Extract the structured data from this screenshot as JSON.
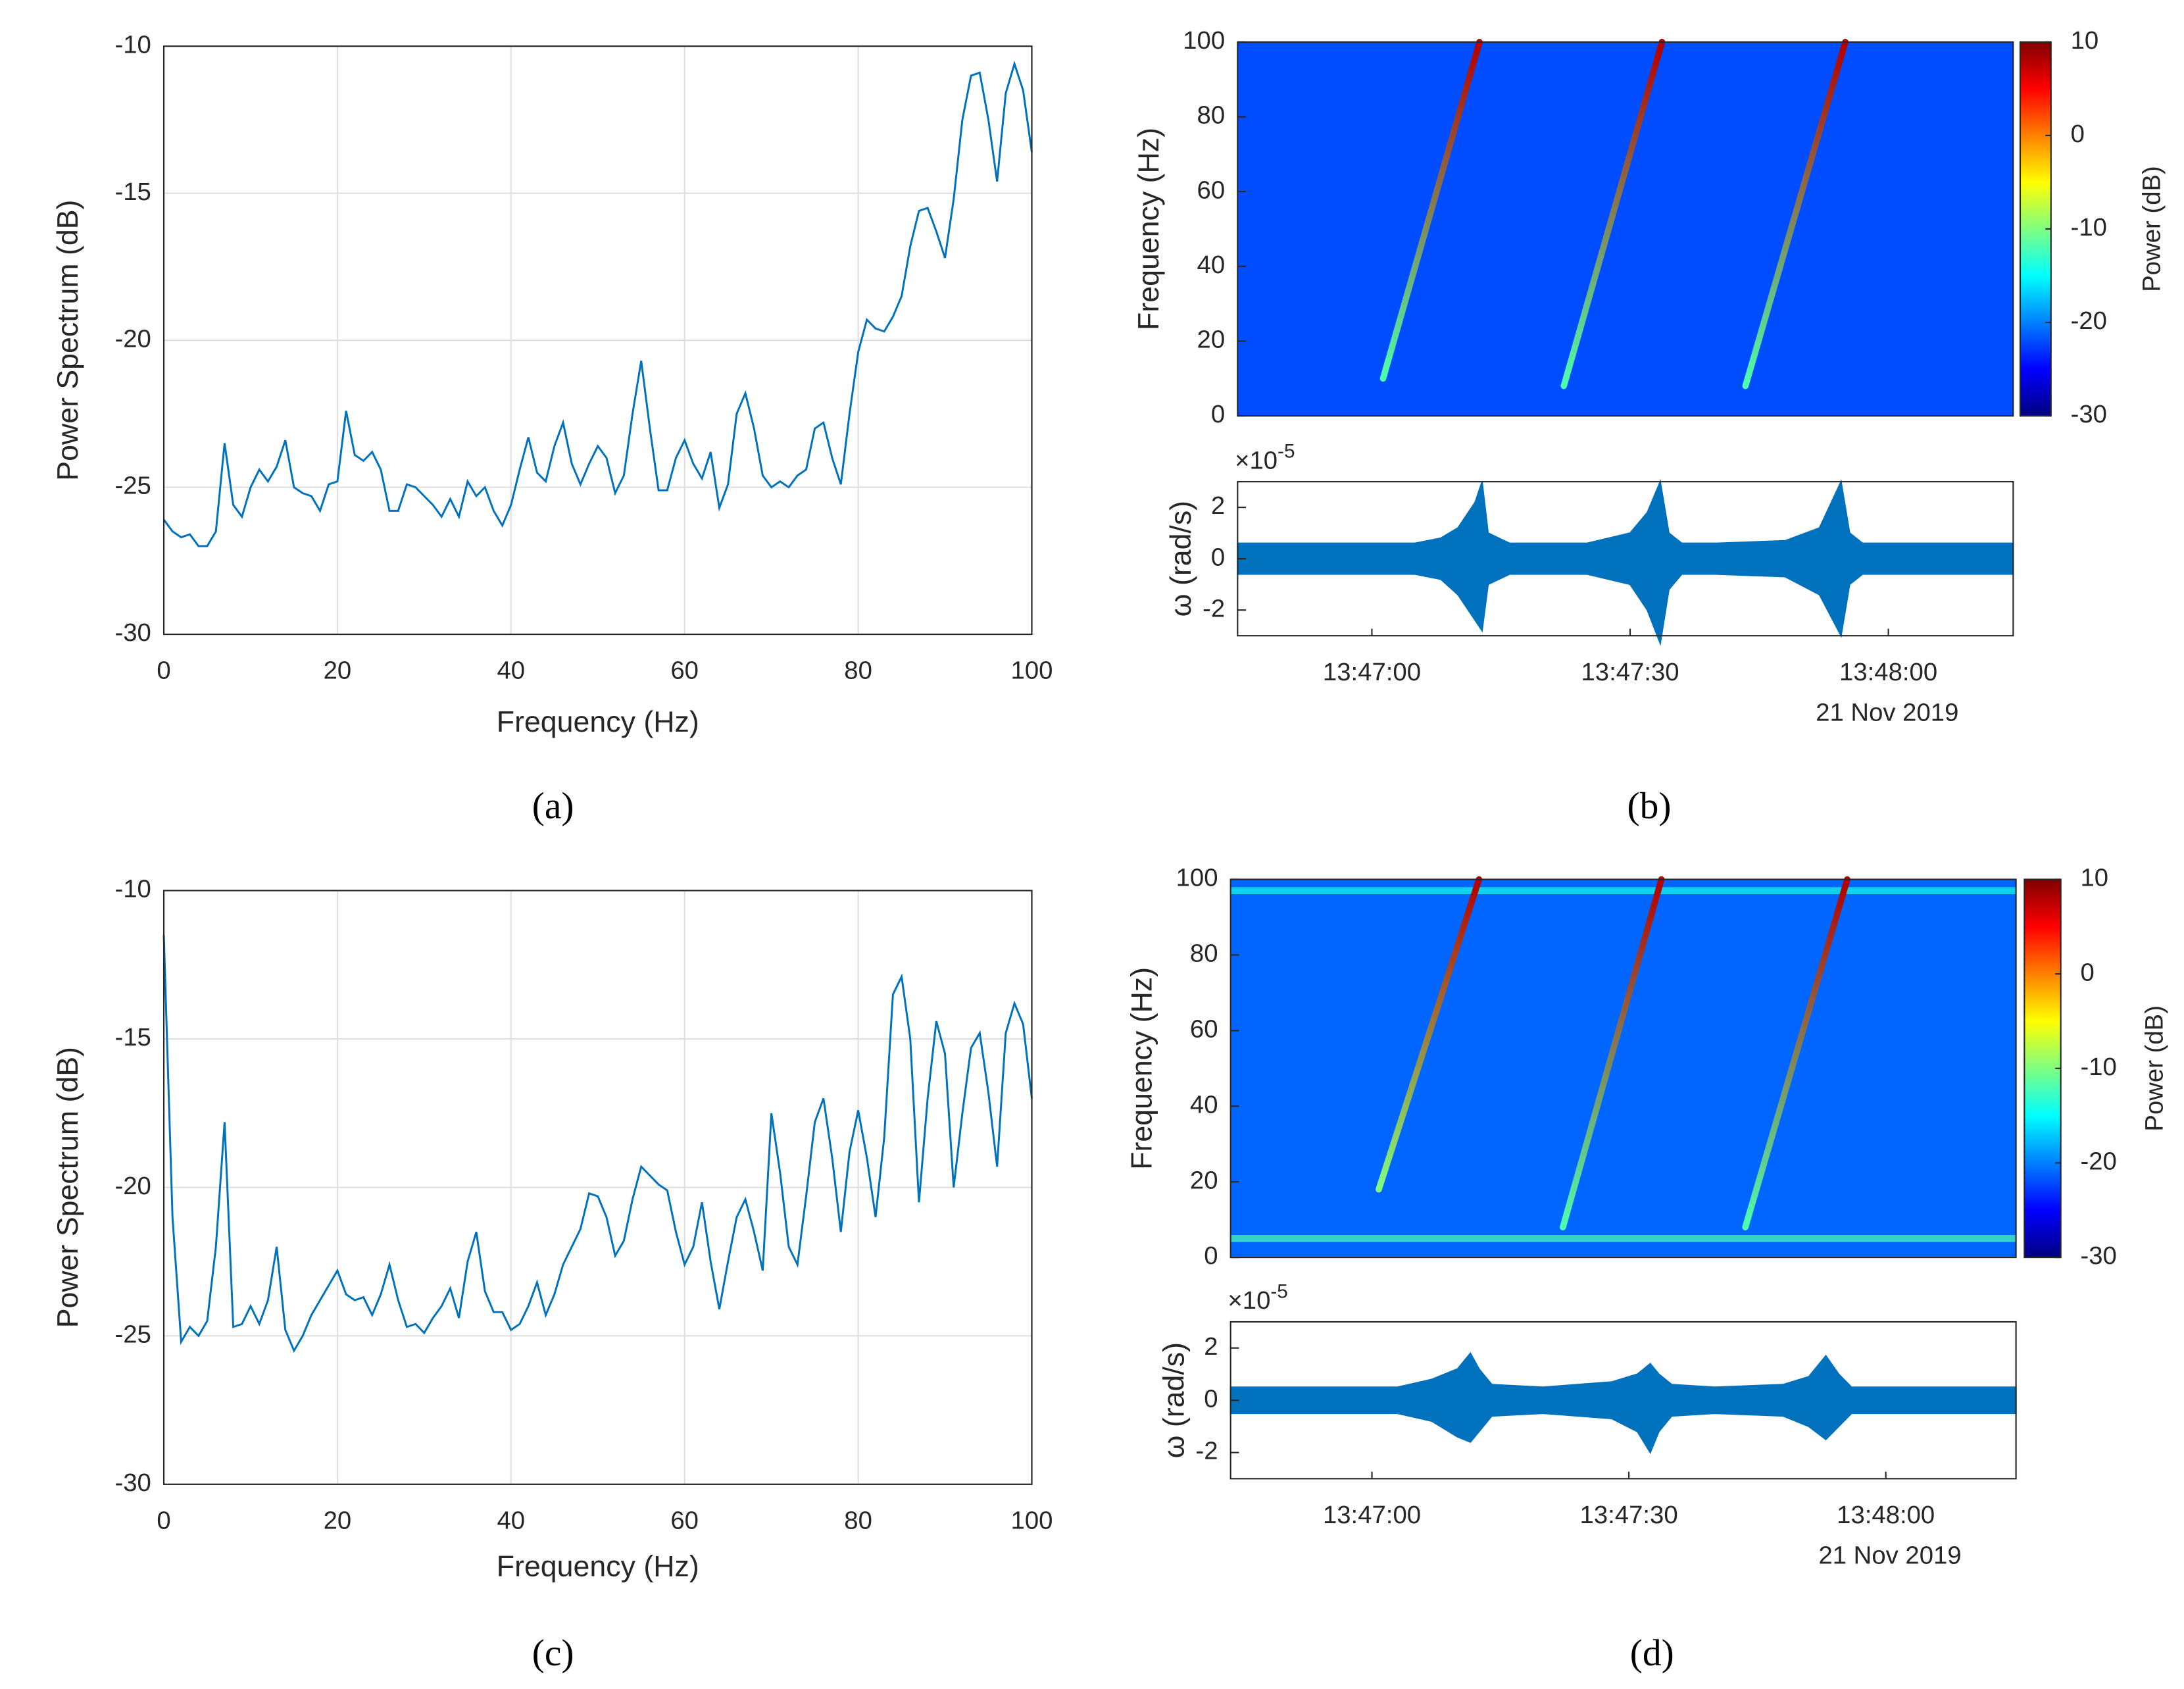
{
  "chart_data": [
    {
      "type": "line",
      "xlabel": "Frequency (Hz)",
      "ylabel": "Power Spectrum (dB)",
      "caption": "(a)",
      "color": "#0072bd",
      "grid": true,
      "xlim": [
        0,
        100
      ],
      "ylim": [
        -30,
        -10
      ],
      "xticks": [
        0,
        20,
        40,
        60,
        80,
        100
      ],
      "yticks": [
        -30,
        -25,
        -20,
        -15,
        -10
      ],
      "x": [
        0,
        1,
        2,
        3,
        4,
        5,
        6,
        7,
        8,
        9,
        10,
        11,
        12,
        13,
        14,
        15,
        16,
        17,
        18,
        19,
        20,
        21,
        22,
        23,
        24,
        25,
        26,
        27,
        28,
        29,
        30,
        31,
        32,
        33,
        34,
        35,
        36,
        37,
        38,
        39,
        40,
        41,
        42,
        43,
        44,
        45,
        46,
        47,
        48,
        49,
        50,
        51,
        52,
        53,
        54,
        55,
        56,
        57,
        58,
        59,
        60,
        61,
        62,
        63,
        64,
        65,
        66,
        67,
        68,
        69,
        70,
        71,
        72,
        73,
        74,
        75,
        76,
        77,
        78,
        79,
        80,
        81,
        82,
        83,
        84,
        85,
        86,
        87,
        88,
        89,
        90,
        91,
        92,
        93,
        94,
        95,
        96,
        97,
        98,
        99,
        100
      ],
      "values": [
        -26.1,
        -26.5,
        -26.7,
        -26.6,
        -27.0,
        -27.0,
        -26.5,
        -23.5,
        -25.6,
        -26.0,
        -25.0,
        -24.4,
        -24.8,
        -24.3,
        -23.4,
        -25.0,
        -25.2,
        -25.3,
        -25.8,
        -24.9,
        -24.8,
        -22.4,
        -23.9,
        -24.1,
        -23.8,
        -24.4,
        -25.8,
        -25.8,
        -24.9,
        -25.0,
        -25.3,
        -25.6,
        -26.0,
        -25.4,
        -26.0,
        -24.8,
        -25.3,
        -25.0,
        -25.8,
        -26.3,
        -25.6,
        -24.4,
        -23.3,
        -24.5,
        -24.8,
        -23.6,
        -22.8,
        -24.2,
        -24.9,
        -24.2,
        -23.6,
        -24.0,
        -25.2,
        -24.6,
        -22.5,
        -20.7,
        -23.0,
        -25.1,
        -25.1,
        -24.0,
        -23.4,
        -24.2,
        -24.7,
        -23.8,
        -25.7,
        -24.9,
        -22.5,
        -21.8,
        -23.0,
        -24.6,
        -25.0,
        -24.8,
        -25.0,
        -24.6,
        -24.4,
        -23.0,
        -22.8,
        -24.0,
        -24.9,
        -22.5,
        -20.4,
        -19.3,
        -19.6,
        -19.7,
        -19.2,
        -18.5,
        -16.8,
        -15.6,
        -15.5,
        -16.3,
        -17.2,
        -15.2,
        -12.5,
        -11.0,
        -10.9,
        -12.5,
        -14.6,
        -11.6,
        -10.6,
        -11.5,
        -13.6
      ]
    },
    {
      "type": "spectrogram",
      "ylabel": "Frequency (Hz)",
      "colorbar_label": "Power (dB)",
      "xlim": [
        -15.6,
        74.5
      ],
      "ylim": [
        0,
        100
      ],
      "yticks": [
        0,
        20,
        40,
        60,
        80,
        100
      ],
      "clim": [
        -30,
        10
      ],
      "cticks": [
        -30,
        -20,
        -10,
        0,
        10
      ],
      "background": -22,
      "tracks": [
        {
          "t": [
            1.3,
            12.5
          ],
          "f": [
            10,
            100
          ],
          "power": [
            -12,
            8
          ]
        },
        {
          "t": [
            22.3,
            33.7
          ],
          "f": [
            8,
            100
          ],
          "power": [
            -12,
            8
          ]
        },
        {
          "t": [
            43.4,
            55.0
          ],
          "f": [
            8,
            100
          ],
          "power": [
            -12,
            8
          ]
        }
      ]
    },
    {
      "type": "signal",
      "ylabel": "ω (rad/s)",
      "exponent_base": "×10",
      "exponent": "-5",
      "date": "21 Nov 2019",
      "caption": "(b)",
      "color": "#0072bd",
      "xlim": [
        -15.6,
        74.5
      ],
      "ylim": [
        -3,
        3
      ],
      "yticks": [
        -2,
        0,
        2
      ],
      "xticks": [
        {
          "value": 0,
          "label": "13:47:00"
        },
        {
          "value": 30,
          "label": "13:47:30"
        },
        {
          "value": 60,
          "label": "13:48:00"
        }
      ],
      "t": [
        -15.6,
        -5,
        5,
        8,
        10,
        12,
        12.8,
        13.5,
        16,
        25,
        30,
        32,
        33.5,
        34.5,
        36,
        40,
        48,
        52,
        54.5,
        55.5,
        57,
        65,
        74.5
      ],
      "upper": [
        0.6,
        0.6,
        0.6,
        0.8,
        1.2,
        2.2,
        3,
        1.0,
        0.6,
        0.6,
        1.0,
        1.8,
        3,
        1.0,
        0.6,
        0.6,
        0.7,
        1.2,
        3,
        1.0,
        0.6,
        0.6,
        0.6
      ],
      "lower": [
        -0.6,
        -0.6,
        -0.6,
        -0.8,
        -1.4,
        -2.4,
        -2.8,
        -1.0,
        -0.6,
        -0.6,
        -1.0,
        -2.0,
        -3.3,
        -1.2,
        -0.6,
        -0.6,
        -0.7,
        -1.4,
        -3.0,
        -1.0,
        -0.6,
        -0.6,
        -0.6
      ]
    },
    {
      "type": "line",
      "xlabel": "Frequency (Hz)",
      "ylabel": "Power Spectrum (dB)",
      "caption": "(c)",
      "color": "#0072bd",
      "grid": true,
      "xlim": [
        0,
        100
      ],
      "ylim": [
        -30,
        -10
      ],
      "xticks": [
        0,
        20,
        40,
        60,
        80,
        100
      ],
      "yticks": [
        -30,
        -25,
        -20,
        -15,
        -10
      ],
      "x": [
        0,
        1,
        2,
        3,
        4,
        5,
        6,
        7,
        8,
        9,
        10,
        11,
        12,
        13,
        14,
        15,
        16,
        17,
        18,
        19,
        20,
        21,
        22,
        23,
        24,
        25,
        26,
        27,
        28,
        29,
        30,
        31,
        32,
        33,
        34,
        35,
        36,
        37,
        38,
        39,
        40,
        41,
        42,
        43,
        44,
        45,
        46,
        47,
        48,
        49,
        50,
        51,
        52,
        53,
        54,
        55,
        56,
        57,
        58,
        59,
        60,
        61,
        62,
        63,
        64,
        65,
        66,
        67,
        68,
        69,
        70,
        71,
        72,
        73,
        74,
        75,
        76,
        77,
        78,
        79,
        80,
        81,
        82,
        83,
        84,
        85,
        86,
        87,
        88,
        89,
        90,
        91,
        92,
        93,
        94,
        95,
        96,
        97,
        98,
        99,
        100
      ],
      "values": [
        -11.5,
        -21.0,
        -25.2,
        -24.7,
        -25.0,
        -24.5,
        -22.0,
        -17.8,
        -24.7,
        -24.6,
        -24.0,
        -24.6,
        -23.8,
        -22.0,
        -24.8,
        -25.5,
        -25.0,
        -24.3,
        -23.8,
        -23.3,
        -22.8,
        -23.6,
        -23.8,
        -23.7,
        -24.3,
        -23.6,
        -22.6,
        -23.8,
        -24.7,
        -24.6,
        -24.9,
        -24.4,
        -24.0,
        -23.4,
        -24.4,
        -22.5,
        -21.5,
        -23.5,
        -24.2,
        -24.2,
        -24.8,
        -24.6,
        -24.0,
        -23.2,
        -24.3,
        -23.6,
        -22.6,
        -22.0,
        -21.4,
        -20.2,
        -20.3,
        -21.0,
        -22.3,
        -21.8,
        -20.4,
        -19.3,
        -19.6,
        -19.9,
        -20.1,
        -21.5,
        -22.6,
        -22.0,
        -20.5,
        -22.5,
        -24.1,
        -22.5,
        -21.0,
        -20.4,
        -21.5,
        -22.8,
        -17.5,
        -19.5,
        -22.0,
        -22.6,
        -20.3,
        -17.8,
        -17.0,
        -19.0,
        -21.5,
        -18.8,
        -17.4,
        -19.0,
        -21.0,
        -18.3,
        -13.5,
        -12.9,
        -15.0,
        -20.5,
        -17.0,
        -14.4,
        -15.5,
        -20.0,
        -17.5,
        -15.3,
        -14.8,
        -16.8,
        -19.3,
        -14.8,
        -13.8,
        -14.5,
        -17.0
      ]
    },
    {
      "type": "spectrogram",
      "ylabel": "Frequency (Hz)",
      "colorbar_label": "Power (dB)",
      "xlim": [
        -16.5,
        75.2
      ],
      "ylim": [
        0,
        100
      ],
      "yticks": [
        0,
        20,
        40,
        60,
        80,
        100
      ],
      "clim": [
        -30,
        10
      ],
      "cticks": [
        -30,
        -20,
        -10,
        0,
        10
      ],
      "background": -21,
      "bands": [
        {
          "f": 97,
          "power": -14
        },
        {
          "f": 5,
          "power": -12
        }
      ],
      "tracks": [
        {
          "t": [
            0.8,
            12.5
          ],
          "f": [
            18,
            100
          ],
          "power": [
            -10,
            8
          ]
        },
        {
          "t": [
            22.3,
            33.8
          ],
          "f": [
            8,
            100
          ],
          "power": [
            -12,
            8
          ]
        },
        {
          "t": [
            43.6,
            55.5
          ],
          "f": [
            8,
            100
          ],
          "power": [
            -12,
            8
          ]
        }
      ]
    },
    {
      "type": "signal",
      "ylabel": "ω (rad/s)",
      "exponent_base": "×10",
      "exponent": "-5",
      "date": "21 Nov 2019",
      "caption": "(d)",
      "color": "#0072bd",
      "xlim": [
        -16.5,
        75.2
      ],
      "ylim": [
        -3,
        3
      ],
      "yticks": [
        -2,
        0,
        2
      ],
      "xticks": [
        {
          "value": 0,
          "label": "13:47:00"
        },
        {
          "value": 30,
          "label": "13:47:30"
        },
        {
          "value": 60,
          "label": "13:48:00"
        }
      ],
      "t": [
        -16.5,
        -5,
        3,
        7,
        10,
        11.5,
        12.5,
        14,
        20,
        28,
        31,
        32.5,
        33.5,
        35,
        40,
        48,
        51,
        53,
        54.5,
        56,
        65,
        75.2
      ],
      "upper": [
        0.5,
        0.5,
        0.5,
        0.8,
        1.2,
        1.8,
        1.2,
        0.6,
        0.5,
        0.7,
        1.0,
        1.4,
        1.0,
        0.6,
        0.5,
        0.6,
        0.9,
        1.7,
        1.0,
        0.5,
        0.5,
        0.5
      ],
      "lower": [
        -0.5,
        -0.5,
        -0.5,
        -0.8,
        -1.4,
        -1.6,
        -1.2,
        -0.6,
        -0.5,
        -0.7,
        -1.2,
        -2.0,
        -1.2,
        -0.6,
        -0.5,
        -0.6,
        -1.0,
        -1.5,
        -1.0,
        -0.5,
        -0.5,
        -0.5
      ]
    }
  ]
}
